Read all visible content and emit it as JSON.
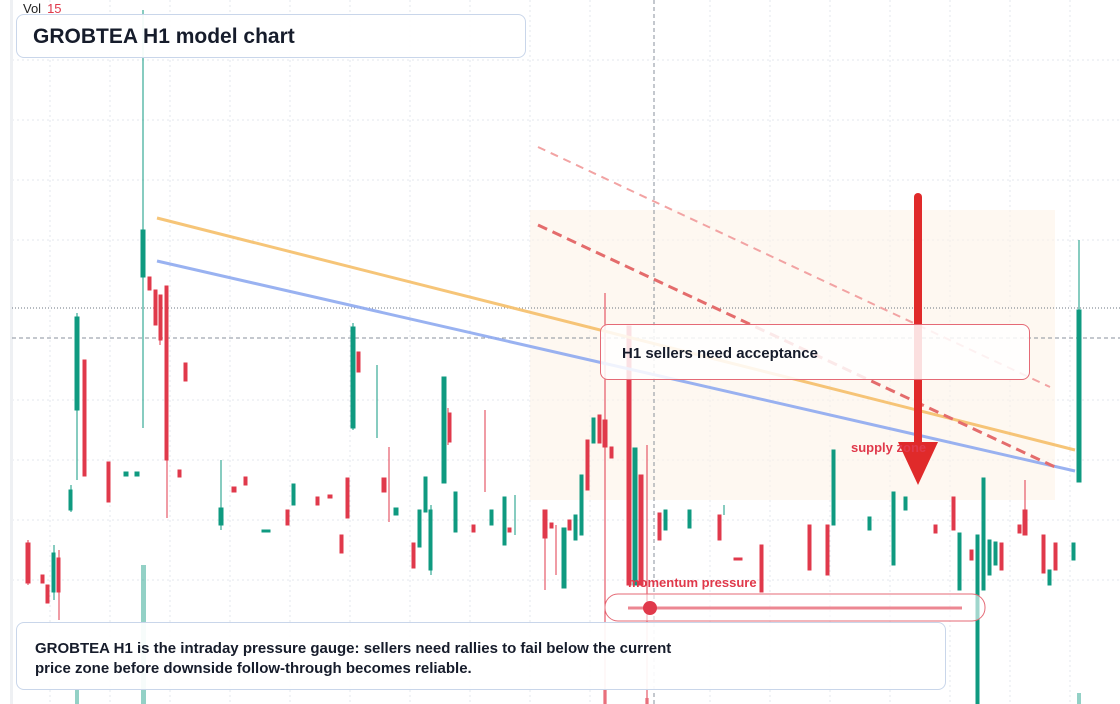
{
  "header": {
    "vol_label": "Vol",
    "vol_value": "15"
  },
  "title": "GROBTEA H1 model chart",
  "annotations": {
    "callout": "H1 sellers need acceptance",
    "zone": "supply zone",
    "gauge": "momentum pressure"
  },
  "footer": "GROBTEA H1 is the intraday pressure gauge: sellers need rallies to fail below the current price zone before downside follow-through becomes reliable."
}
